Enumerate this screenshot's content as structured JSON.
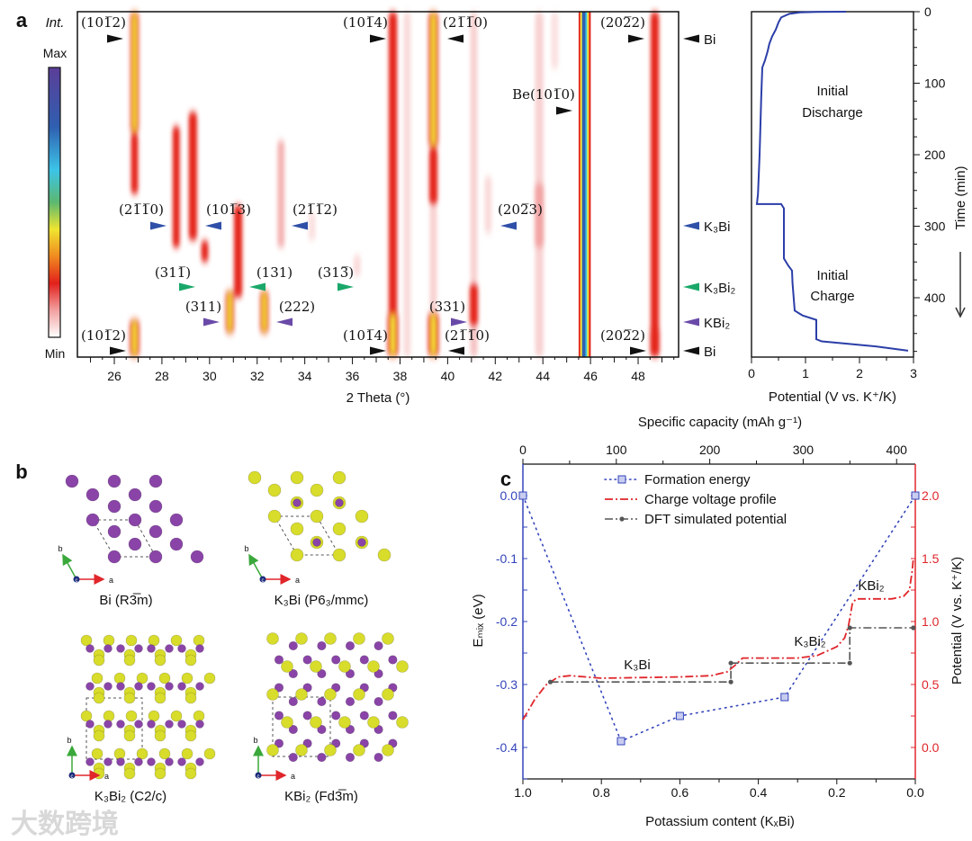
{
  "panel_labels": {
    "a": "a",
    "b": "b",
    "c": "c"
  },
  "watermark": "大数跨境",
  "colors": {
    "bi": "#111111",
    "k3bi": "#2f4fa8",
    "k3bi2": "#1aa86a",
    "kbi2": "#6a4aa8",
    "curve": "#2b3ea8",
    "formation": "#3344bb",
    "charge": "#e0262b",
    "dft": "#555555",
    "atom_bi": "#8a44a8",
    "atom_k": "#d8dc2a"
  },
  "chart_data": [
    {
      "id": "operando-xrd",
      "type": "heatmap",
      "xlabel": "2 Theta (°)",
      "xlim": [
        24.45,
        49.7
      ],
      "xticks": [
        "26",
        "28",
        "30",
        "32",
        "34",
        "36",
        "38",
        "40",
        "42",
        "44",
        "46",
        "48"
      ],
      "ylim_time_min": [
        0,
        483
      ],
      "colorbar": {
        "title": "Int.",
        "max": "Max",
        "min": "Min"
      },
      "peaks": [
        {
          "two_theta": 26.85,
          "t": [
            0,
            170
          ],
          "intensity": 0.85,
          "width": 0.35
        },
        {
          "two_theta": 26.85,
          "t": [
            170,
            255
          ],
          "intensity": 0.45,
          "width": 0.3
        },
        {
          "two_theta": 26.85,
          "t": [
            430,
            483
          ],
          "intensity": 0.9,
          "width": 0.4
        },
        {
          "two_theta": 37.7,
          "t": [
            0,
            483
          ],
          "intensity": 0.6,
          "width": 0.35
        },
        {
          "two_theta": 37.7,
          "t": [
            420,
            483
          ],
          "intensity": 0.8,
          "width": 0.45
        },
        {
          "two_theta": 38.3,
          "t": [
            0,
            483
          ],
          "intensity": 0.12,
          "width": 0.3
        },
        {
          "two_theta": 39.4,
          "t": [
            0,
            190
          ],
          "intensity": 0.9,
          "width": 0.4
        },
        {
          "two_theta": 39.4,
          "t": [
            190,
            270
          ],
          "intensity": 0.6,
          "width": 0.35
        },
        {
          "two_theta": 39.4,
          "t": [
            270,
            420
          ],
          "intensity": 0.15,
          "width": 0.3
        },
        {
          "two_theta": 39.4,
          "t": [
            420,
            483
          ],
          "intensity": 0.9,
          "width": 0.45
        },
        {
          "two_theta": 41.1,
          "t": [
            0,
            380
          ],
          "intensity": 0.15,
          "width": 0.3
        },
        {
          "two_theta": 41.1,
          "t": [
            380,
            440
          ],
          "intensity": 0.6,
          "width": 0.35
        },
        {
          "two_theta": 41.1,
          "t": [
            440,
            483
          ],
          "intensity": 0.2,
          "width": 0.3
        },
        {
          "two_theta": 41.7,
          "t": [
            230,
            310
          ],
          "intensity": 0.12,
          "width": 0.3
        },
        {
          "two_theta": 43.85,
          "t": [
            0,
            483
          ],
          "intensity": 0.15,
          "width": 0.35
        },
        {
          "two_theta": 43.85,
          "t": [
            240,
            330
          ],
          "intensity": 0.25,
          "width": 0.4
        },
        {
          "two_theta": 44.5,
          "t": [
            0,
            80
          ],
          "intensity": 0.1,
          "width": 0.3
        },
        {
          "two_theta": 48.7,
          "t": [
            0,
            483
          ],
          "intensity": 0.5,
          "width": 0.35
        },
        {
          "two_theta": 48.7,
          "t": [
            440,
            483
          ],
          "intensity": 0.6,
          "width": 0.4
        },
        {
          "two_theta": 28.6,
          "t": [
            160,
            330
          ],
          "intensity": 0.35,
          "width": 0.3
        },
        {
          "two_theta": 29.3,
          "t": [
            140,
            320
          ],
          "intensity": 0.5,
          "width": 0.35
        },
        {
          "two_theta": 29.8,
          "t": [
            320,
            350
          ],
          "intensity": 0.3,
          "width": 0.3
        },
        {
          "two_theta": 30.85,
          "t": [
            390,
            450
          ],
          "intensity": 0.95,
          "width": 0.35
        },
        {
          "two_theta": 31.2,
          "t": [
            270,
            400
          ],
          "intensity": 0.4,
          "width": 0.35
        },
        {
          "two_theta": 32.3,
          "t": [
            390,
            450
          ],
          "intensity": 0.95,
          "width": 0.35
        },
        {
          "two_theta": 33.0,
          "t": [
            180,
            330
          ],
          "intensity": 0.25,
          "width": 0.3
        },
        {
          "two_theta": 34.3,
          "t": [
            280,
            320
          ],
          "intensity": 0.1,
          "width": 0.3
        },
        {
          "two_theta": 36.2,
          "t": [
            340,
            370
          ],
          "intensity": 0.12,
          "width": 0.3
        }
      ],
      "reference_band": {
        "label": "Be(101̅0)",
        "two_theta": [
          45.5,
          46.0
        ]
      },
      "annotations": [
        {
          "text": "(101̅2)",
          "phase": "bi"
        },
        {
          "text": "(101̅4)",
          "phase": "bi"
        },
        {
          "text": "(21̅1̅0)",
          "phase": "bi"
        },
        {
          "text": "(202̅2)",
          "phase": "bi"
        },
        {
          "text": "(21̅1̅0)",
          "phase": "k3bi"
        },
        {
          "text": "(101̅3)",
          "phase": "k3bi"
        },
        {
          "text": "(21̅1̅2)",
          "phase": "k3bi"
        },
        {
          "text": "(202̅3)",
          "phase": "k3bi"
        },
        {
          "text": "(311̅)",
          "phase": "k3bi2"
        },
        {
          "text": "(131)",
          "phase": "k3bi2"
        },
        {
          "text": "(313̅)",
          "phase": "k3bi2"
        },
        {
          "text": "(311)",
          "phase": "kbi2"
        },
        {
          "text": "(222)",
          "phase": "kbi2"
        },
        {
          "text": "(331)",
          "phase": "kbi2"
        },
        {
          "text": "(101̅2)",
          "phase": "bi"
        },
        {
          "text": "(101̅4)",
          "phase": "bi"
        },
        {
          "text": "(21̅1̅0)",
          "phase": "bi"
        },
        {
          "text": "(202̅2)",
          "phase": "bi"
        }
      ],
      "phase_markers": [
        {
          "label": "Bi",
          "phase": "bi"
        },
        {
          "label": "K₃Bi",
          "phase": "k3bi"
        },
        {
          "label": "K₃Bi₂",
          "phase": "k3bi2"
        },
        {
          "label": "KBi₂",
          "phase": "kbi2"
        },
        {
          "label": "Bi",
          "phase": "bi"
        }
      ]
    },
    {
      "id": "voltage-time",
      "type": "line",
      "xlabel": "Potential (V vs. K⁺/K)",
      "ylabel": "Time (min)",
      "xlim": [
        0,
        3
      ],
      "ylim": [
        0,
        483
      ],
      "xticks": [
        "0",
        "1",
        "2",
        "3"
      ],
      "yticks": [
        "0",
        "100",
        "200",
        "300",
        "400"
      ],
      "regions": [
        [
          "Initial",
          "Discharge"
        ],
        [
          "Initial",
          "Charge"
        ]
      ],
      "series": [
        {
          "name": "potential",
          "points": [
            [
              1.75,
              0
            ],
            [
              1.2,
              0.3
            ],
            [
              0.9,
              1
            ],
            [
              0.7,
              3
            ],
            [
              0.55,
              8
            ],
            [
              0.5,
              15
            ],
            [
              0.45,
              25
            ],
            [
              0.38,
              35
            ],
            [
              0.33,
              45
            ],
            [
              0.3,
              55
            ],
            [
              0.25,
              68
            ],
            [
              0.2,
              78
            ],
            [
              0.18,
              120
            ],
            [
              0.15,
              200
            ],
            [
              0.12,
              255
            ],
            [
              0.1,
              269
            ],
            [
              0.55,
              269
            ],
            [
              0.6,
              275
            ],
            [
              0.6,
              345
            ],
            [
              0.68,
              355
            ],
            [
              0.75,
              362
            ],
            [
              0.76,
              380
            ],
            [
              0.8,
              418
            ],
            [
              0.95,
              425
            ],
            [
              1.2,
              431
            ],
            [
              1.2,
              458
            ],
            [
              1.3,
              461
            ],
            [
              2.3,
              468
            ],
            [
              2.9,
              474
            ]
          ]
        }
      ]
    },
    {
      "id": "formation-energy",
      "type": "line",
      "xlabel": "Potassium content (KₓBi)",
      "x2label": "Specific capacity (mAh g⁻¹)",
      "ylabel": "Eₘᵢₓ (eV)",
      "y2label": "Potential (V vs. K⁺/K)",
      "xlim": [
        1.0,
        0.0
      ],
      "x2lim": [
        0,
        420
      ],
      "ylim": [
        -0.45,
        0.05
      ],
      "y2lim": [
        -0.25,
        2.25
      ],
      "xticks": [
        "1.0",
        "0.8",
        "0.6",
        "0.4",
        "0.2",
        "0.0"
      ],
      "x2ticks": [
        "0",
        "100",
        "200",
        "300",
        "400"
      ],
      "yticks": [
        "0.0",
        "-0.1",
        "-0.2",
        "-0.3",
        "-0.4"
      ],
      "y2ticks": [
        "0.0",
        "0.5",
        "1.0",
        "1.5",
        "2.0"
      ],
      "legend": [
        "Formation energy",
        "Charge voltage profile",
        "DFT simulated potential"
      ],
      "legend_position": "top-left",
      "annotations": [
        "K₃Bi",
        "K₃Bi₂",
        "KBi₂"
      ],
      "series": [
        {
          "name": "Formation energy",
          "axis": "left",
          "points": [
            [
              1.0,
              0.0
            ],
            [
              0.75,
              -0.39
            ],
            [
              0.6,
              -0.35
            ],
            [
              0.333,
              -0.32
            ],
            [
              0.0,
              0.0
            ]
          ]
        },
        {
          "name": "Charge voltage profile",
          "axis": "right",
          "points": [
            [
              1.0,
              0.22
            ],
            [
              0.97,
              0.38
            ],
            [
              0.94,
              0.5
            ],
            [
              0.91,
              0.56
            ],
            [
              0.88,
              0.57
            ],
            [
              0.8,
              0.55
            ],
            [
              0.6,
              0.56
            ],
            [
              0.52,
              0.57
            ],
            [
              0.48,
              0.6
            ],
            [
              0.46,
              0.65
            ],
            [
              0.44,
              0.71
            ],
            [
              0.4,
              0.71
            ],
            [
              0.3,
              0.71
            ],
            [
              0.25,
              0.73
            ],
            [
              0.2,
              0.8
            ],
            [
              0.18,
              0.87
            ],
            [
              0.17,
              0.97
            ],
            [
              0.16,
              1.15
            ],
            [
              0.15,
              1.18
            ],
            [
              0.06,
              1.18
            ],
            [
              0.03,
              1.2
            ],
            [
              0.015,
              1.25
            ],
            [
              0.008,
              1.4
            ],
            [
              0.005,
              1.5
            ]
          ]
        },
        {
          "name": "DFT simulated potential",
          "axis": "right",
          "points": [
            [
              0.93,
              0.52
            ],
            [
              0.47,
              0.52
            ],
            [
              0.47,
              0.67
            ],
            [
              0.167,
              0.67
            ],
            [
              0.167,
              0.95
            ],
            [
              0.005,
              0.95
            ]
          ]
        }
      ]
    }
  ],
  "structures": [
    {
      "label": "Bi  (R3̅m)"
    },
    {
      "label": "K₃Bi  (P6₃/mmc)"
    },
    {
      "label": "K₃Bi₂  (C2/c)"
    },
    {
      "label": "KBi₂  (Fd3̅m)"
    }
  ],
  "lattice_axes": {
    "a": "a",
    "b": "b",
    "c": "c"
  }
}
